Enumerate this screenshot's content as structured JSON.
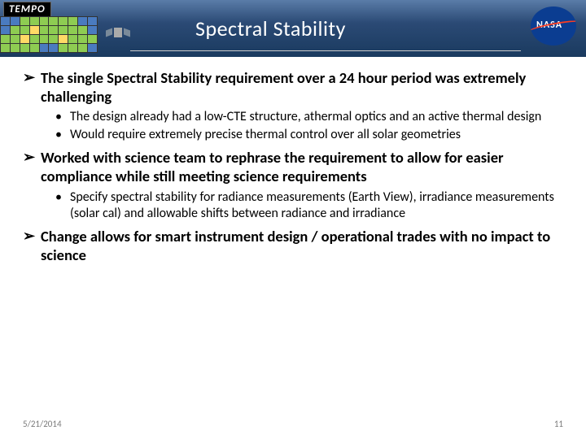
{
  "logo_text": "TEMPO",
  "nasa_text": "NASA",
  "title": "Spectral Stability",
  "bullets": [
    {
      "text": "The single Spectral Stability requirement over a 24 hour period was extremely challenging",
      "subs": [
        "The design already had a low-CTE structure, athermal optics and an active thermal design",
        "Would require extremely precise thermal control over all solar geometries"
      ]
    },
    {
      "text": "Worked with science team to rephrase the requirement to allow for easier compliance while still meeting science requirements",
      "subs": [
        "Specify spectral stability for radiance measurements (Earth View), irradiance measurements (solar cal) and allowable shifts between radiance and irradiance"
      ]
    },
    {
      "text": "Change allows for smart instrument design / operational trades with no impact to science",
      "subs": []
    }
  ],
  "footer_date": "5/21/2014",
  "footer_page": "11"
}
